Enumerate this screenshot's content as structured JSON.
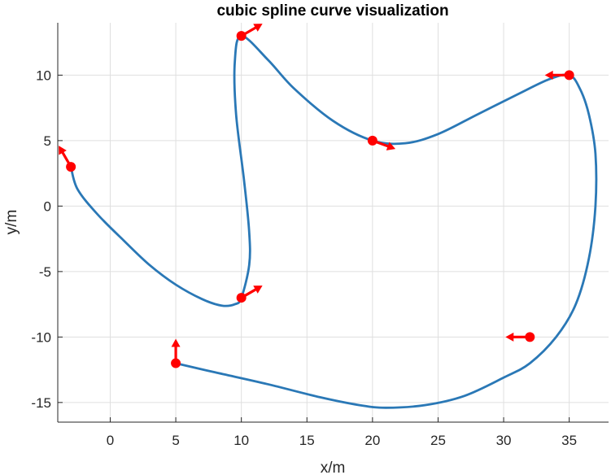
{
  "chart_data": {
    "type": "line",
    "title": "cubic spline curve visualization",
    "xlabel": "x/m",
    "ylabel": "y/m",
    "xlim": [
      -4,
      38
    ],
    "ylim": [
      -16.5,
      14
    ],
    "xticks": [
      0,
      5,
      10,
      15,
      20,
      25,
      30,
      35
    ],
    "yticks": [
      -15,
      -10,
      -5,
      0,
      5,
      10
    ],
    "xtick_labels": [
      "0",
      "5",
      "10",
      "15",
      "20",
      "25",
      "30",
      "35"
    ],
    "ytick_labels": [
      "-15",
      "-10",
      "-5",
      "0",
      "5",
      "10"
    ],
    "grid": true,
    "curve_color": "#2a78b6",
    "marker_color": "#ff0000",
    "waypoints": [
      {
        "x": 5,
        "y": -12,
        "heading_deg": 90
      },
      {
        "x": 32,
        "y": -10,
        "heading_deg": 180
      },
      {
        "x": 35,
        "y": 10,
        "heading_deg": 180
      },
      {
        "x": 20,
        "y": 5,
        "heading_deg": -20
      },
      {
        "x": 10,
        "y": 13,
        "heading_deg": 30
      },
      {
        "x": 10,
        "y": -7,
        "heading_deg": 30
      },
      {
        "x": -3,
        "y": 3,
        "heading_deg": 120
      }
    ],
    "curve_points": [
      [
        5,
        -12
      ],
      [
        8,
        -12.7
      ],
      [
        12,
        -13.6
      ],
      [
        16,
        -14.6
      ],
      [
        19,
        -15.2
      ],
      [
        21,
        -15.4
      ],
      [
        24,
        -15.2
      ],
      [
        27,
        -14.5
      ],
      [
        30,
        -13.1
      ],
      [
        32,
        -12
      ],
      [
        34,
        -10
      ],
      [
        35.5,
        -7.5
      ],
      [
        36.5,
        -4
      ],
      [
        37,
        0
      ],
      [
        37,
        4
      ],
      [
        36.5,
        7
      ],
      [
        35.8,
        9
      ],
      [
        35,
        10
      ],
      [
        33.5,
        9.7
      ],
      [
        31,
        8.5
      ],
      [
        28,
        7
      ],
      [
        25,
        5.5
      ],
      [
        22.5,
        4.8
      ],
      [
        20,
        5
      ],
      [
        17,
        6.5
      ],
      [
        14,
        9
      ],
      [
        12,
        11.2
      ],
      [
        10,
        13
      ],
      [
        9.5,
        11
      ],
      [
        9.6,
        7
      ],
      [
        10.2,
        2
      ],
      [
        10.6,
        -2
      ],
      [
        10.6,
        -4.5
      ],
      [
        10,
        -7
      ],
      [
        9.5,
        -7.5
      ],
      [
        8.5,
        -7.6
      ],
      [
        7,
        -7.1
      ],
      [
        5,
        -6
      ],
      [
        3,
        -4.5
      ],
      [
        1,
        -2.6
      ],
      [
        -1,
        -0.6
      ],
      [
        -2.5,
        1.3
      ],
      [
        -3,
        3
      ]
    ]
  }
}
